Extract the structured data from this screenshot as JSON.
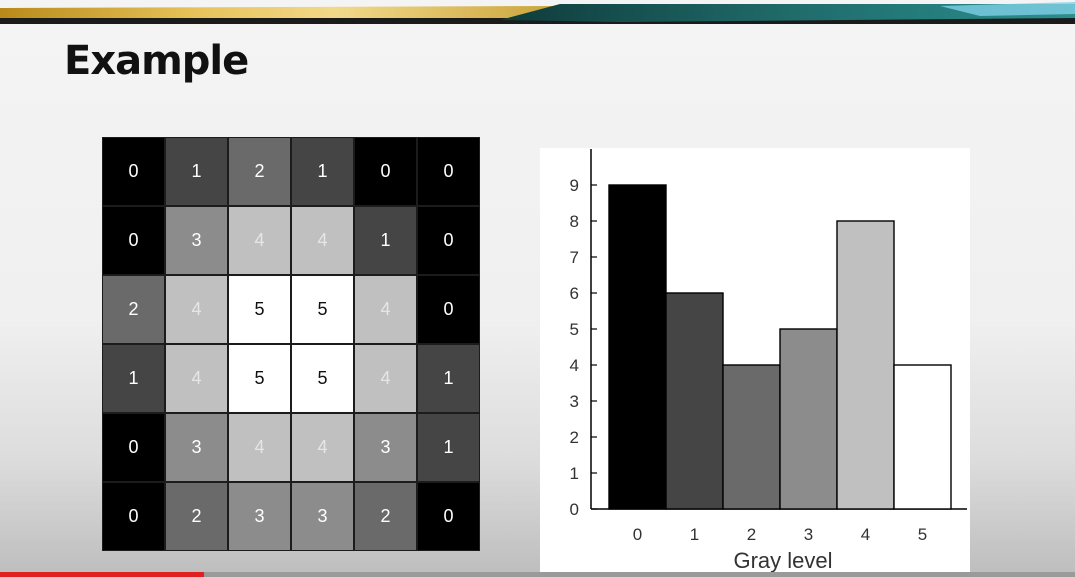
{
  "slide": {
    "title": "Example"
  },
  "image_grid": {
    "rows": [
      [
        0,
        1,
        2,
        1,
        0,
        0
      ],
      [
        0,
        3,
        4,
        4,
        1,
        0
      ],
      [
        2,
        4,
        5,
        5,
        4,
        0
      ],
      [
        1,
        4,
        5,
        5,
        4,
        1
      ],
      [
        0,
        3,
        4,
        4,
        3,
        1
      ],
      [
        0,
        2,
        3,
        3,
        2,
        0
      ]
    ],
    "gray_colors": [
      "#000000",
      "#454545",
      "#6a6a6a",
      "#8c8c8c",
      "#c0c0c0",
      "#ffffff"
    ]
  },
  "chart_data": {
    "type": "bar",
    "categories": [
      "0",
      "1",
      "2",
      "3",
      "4",
      "5"
    ],
    "values": [
      9,
      6,
      4,
      5,
      8,
      4
    ],
    "bar_colors": [
      "#000000",
      "#454545",
      "#6a6a6a",
      "#8c8c8c",
      "#c0c0c0",
      "#ffffff"
    ],
    "xlabel": "Gray level",
    "ylabel": "",
    "ylim": [
      0,
      9
    ],
    "yticks": [
      0,
      1,
      2,
      3,
      4,
      5,
      6,
      7,
      8,
      9
    ],
    "grid": false,
    "legend": "none"
  },
  "video": {
    "progress": 0.19
  }
}
